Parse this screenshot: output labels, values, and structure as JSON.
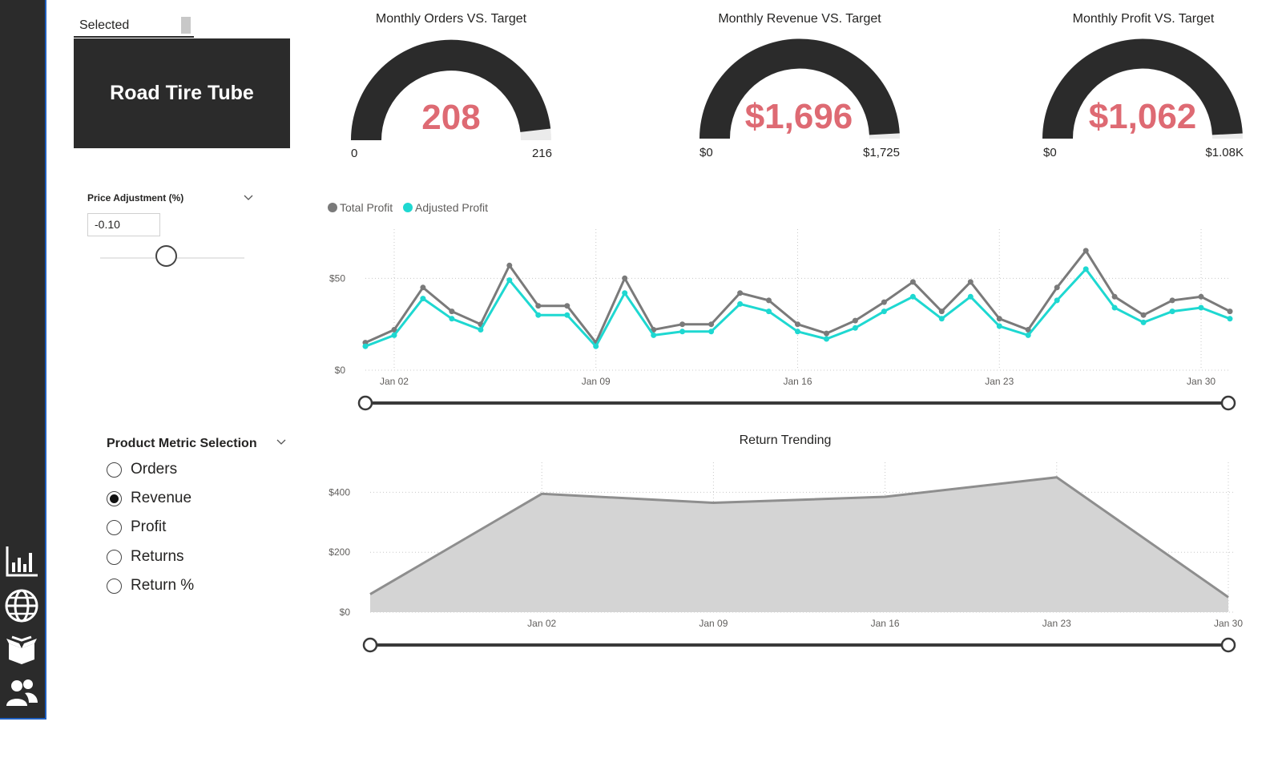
{
  "nav": {
    "items": [
      {
        "name": "bar-chart-icon"
      },
      {
        "name": "globe-icon"
      },
      {
        "name": "box-icon"
      },
      {
        "name": "users-icon"
      }
    ]
  },
  "slicer": {
    "selected_label": "Selected",
    "product_name": "Road Tire Tube"
  },
  "price_adjustment": {
    "title": "Price Adjustment (%)",
    "value": "-0.10",
    "slider_fraction": 0.46
  },
  "metric_selection": {
    "title": "Product Metric Selection",
    "options": [
      {
        "label": "Orders",
        "selected": false
      },
      {
        "label": "Revenue",
        "selected": true
      },
      {
        "label": "Profit",
        "selected": false
      },
      {
        "label": "Returns",
        "selected": false
      },
      {
        "label": "Return %",
        "selected": false
      }
    ]
  },
  "gauges": [
    {
      "title": "Monthly Orders VS. Target",
      "value_label": "208",
      "min_label": "0",
      "max_label": "216",
      "value": 208,
      "max": 216
    },
    {
      "title": "Monthly Revenue VS. Target",
      "value_label": "$1,696",
      "min_label": "$0",
      "max_label": "$1,725",
      "value": 1696,
      "max": 1725
    },
    {
      "title": "Monthly Profit VS. Target",
      "value_label": "$1,062",
      "min_label": "$0",
      "max_label": "$1.08K",
      "value": 1062,
      "max": 1080
    }
  ],
  "colors": {
    "accent_value": "#de6a73",
    "dark": "#2b2b2b",
    "gauge_empty": "#ebebeb",
    "total_profit": "#7a7a7a",
    "adjusted_profit": "#1ed8d1",
    "area_fill": "#d4d4d4",
    "area_line": "#8e8e8e"
  },
  "chart_data": [
    {
      "type": "line",
      "title": "",
      "legend": [
        "Total Profit",
        "Adjusted Profit"
      ],
      "legend_position": "top-left",
      "x": [
        "Jan 01",
        "Jan 02",
        "Jan 03",
        "Jan 04",
        "Jan 05",
        "Jan 06",
        "Jan 07",
        "Jan 08",
        "Jan 09",
        "Jan 10",
        "Jan 11",
        "Jan 12",
        "Jan 13",
        "Jan 14",
        "Jan 15",
        "Jan 16",
        "Jan 17",
        "Jan 18",
        "Jan 19",
        "Jan 20",
        "Jan 21",
        "Jan 22",
        "Jan 23",
        "Jan 24",
        "Jan 25",
        "Jan 26",
        "Jan 27",
        "Jan 28",
        "Jan 29",
        "Jan 30",
        "Jan 31"
      ],
      "x_ticks": [
        "Jan 02",
        "Jan 09",
        "Jan 16",
        "Jan 23",
        "Jan 30"
      ],
      "y_ticks": [
        "$0",
        "$50"
      ],
      "ylim": [
        0,
        75
      ],
      "grid": true,
      "series": [
        {
          "name": "Total Profit",
          "values": [
            15,
            22,
            45,
            32,
            25,
            57,
            35,
            35,
            15,
            50,
            22,
            25,
            25,
            42,
            38,
            25,
            20,
            27,
            37,
            48,
            32,
            48,
            28,
            22,
            45,
            65,
            40,
            30,
            38,
            40,
            32
          ]
        },
        {
          "name": "Adjusted Profit",
          "values": [
            13,
            19,
            39,
            28,
            22,
            49,
            30,
            30,
            13,
            42,
            19,
            21,
            21,
            36,
            32,
            21,
            17,
            23,
            32,
            40,
            28,
            40,
            24,
            19,
            38,
            55,
            34,
            26,
            32,
            34,
            28
          ]
        }
      ]
    },
    {
      "type": "area",
      "title": "Return Trending",
      "x": [
        "Dec 29",
        "Jan 02",
        "Jan 09",
        "Jan 16",
        "Jan 23",
        "Jan 30"
      ],
      "x_ticks": [
        "Jan 02",
        "Jan 09",
        "Jan 16",
        "Jan 23",
        "Jan 30"
      ],
      "y_ticks": [
        "$0",
        "$200",
        "$400"
      ],
      "ylim": [
        0,
        500
      ],
      "grid": true,
      "values": [
        60,
        395,
        365,
        385,
        450,
        50
      ]
    }
  ]
}
